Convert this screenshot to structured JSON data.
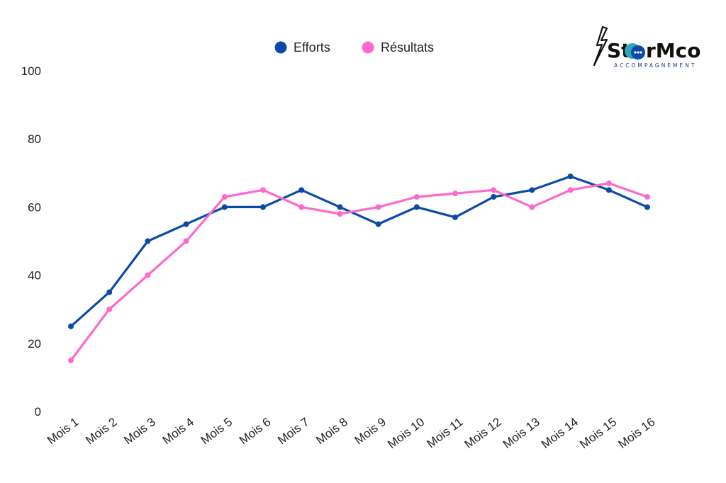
{
  "logo": {
    "brand_lead": "St",
    "brand_tail": "rMco",
    "tagline": "ACCOMPAGNEMENT"
  },
  "chart_data": {
    "type": "line",
    "categories": [
      "Mois 1",
      "Mois 2",
      "Mois 3",
      "Mois 4",
      "Mois 5",
      "Mois 6",
      "Mois 7",
      "Mois 8",
      "Mois 9",
      "Mois 10",
      "Mois 11",
      "Mois 12",
      "Mois 13",
      "Mois 14",
      "Mois 15",
      "Mois 16"
    ],
    "series": [
      {
        "name": "Efforts",
        "color": "#0b4aa8",
        "values": [
          25,
          35,
          50,
          55,
          60,
          60,
          65,
          60,
          55,
          60,
          57,
          63,
          65,
          69,
          65,
          60
        ]
      },
      {
        "name": "Résultats",
        "color": "#ff69c8",
        "values": [
          15,
          30,
          40,
          50,
          63,
          65,
          60,
          58,
          60,
          63,
          64,
          65,
          60,
          65,
          67,
          63
        ]
      }
    ],
    "ylim": [
      0,
      100
    ],
    "yticks": [
      0,
      20,
      40,
      60,
      80,
      100
    ],
    "grid": false,
    "legend_position": "top-center"
  }
}
